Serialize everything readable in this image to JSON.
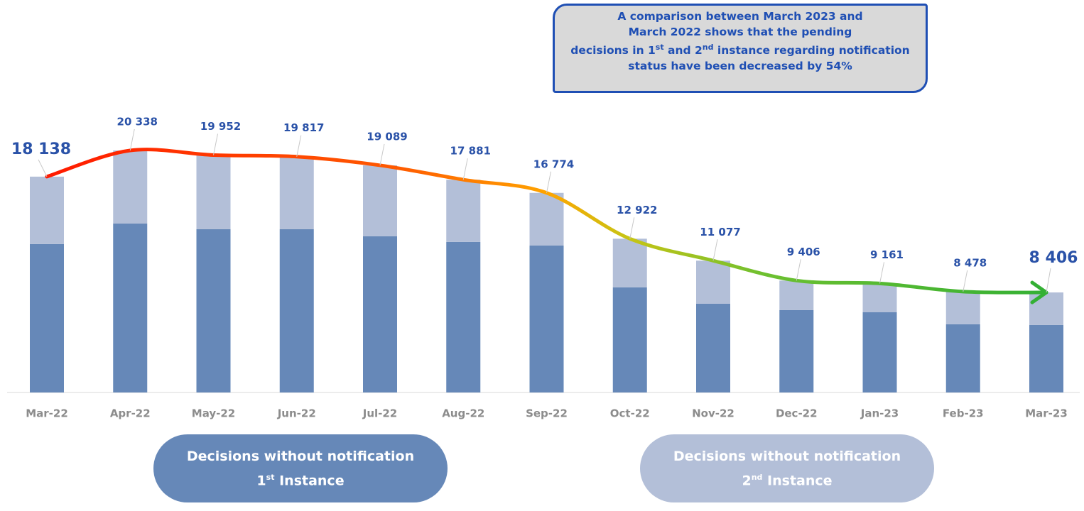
{
  "chart_data": {
    "type": "stacked_bar",
    "annotation": [
      "A comparison between  March 2023 and",
      "March 2022 shows that the pending",
      "decisions in 1",
      "st",
      " and 2",
      "nd",
      " instance regarding notification",
      "status have been decreased by 54%"
    ],
    "categories": [
      "Mar-22",
      "Apr-22",
      "May-22",
      "Jun-22",
      "Jul-22",
      "Aug-22",
      "Sep-22",
      "Oct-22",
      "Nov-22",
      "Dec-22",
      "Jan-23",
      "Feb-23",
      "Mar-23"
    ],
    "series": [
      {
        "name": "Decisions without notification",
        "ordinal": "1",
        "ordinal_suffix": "st",
        "suffix": "Instance",
        "color": "#6688b8",
        "values": [
          12470,
          14200,
          13720,
          13720,
          13125,
          12650,
          12350,
          8830,
          7460,
          6920,
          6740,
          5730,
          5670
        ]
      },
      {
        "name": "Decisions without notification",
        "ordinal": "2",
        "ordinal_suffix": "nd",
        "suffix": "Instance",
        "color": "#b3bfd8",
        "values": [
          5668,
          6138,
          6232,
          6097,
          5964,
          5231,
          4424,
          4092,
          3617,
          2486,
          2421,
          2748,
          2736
        ]
      }
    ],
    "totals": [
      18138,
      20338,
      19952,
      19817,
      19089,
      17881,
      16774,
      12922,
      11077,
      9406,
      9161,
      8478,
      8406
    ],
    "total_labels": [
      "18 138",
      "20 338",
      "19 952",
      "19 817",
      "19 089",
      "17 881",
      "16 774",
      "12 922",
      "11 077",
      "9 406",
      "9 161",
      "8 478",
      "8 406"
    ]
  }
}
